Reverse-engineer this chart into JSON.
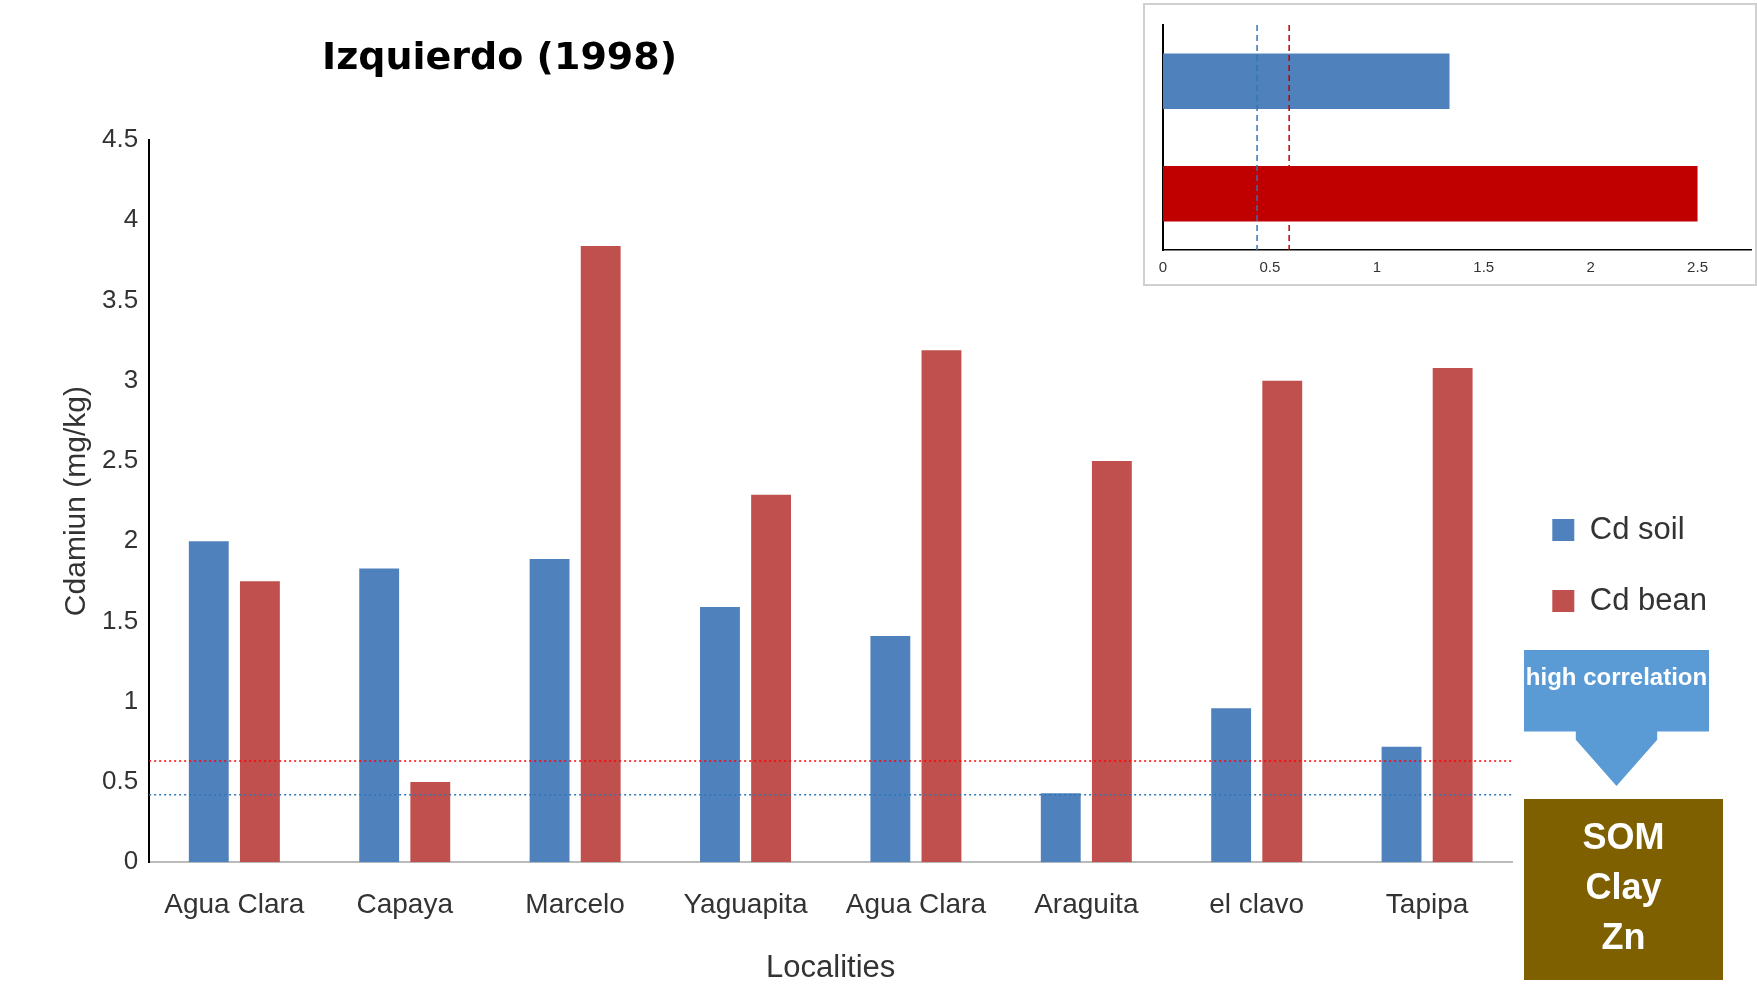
{
  "chart_data": [
    {
      "type": "bar",
      "title": "Izquierdo (1998)",
      "xlabel": "Localities",
      "ylabel": "Cdamiun (mg/kg)",
      "categories": [
        "Agua Clara",
        "Capaya",
        "Marcelo",
        "Yaguapita",
        "Agua Clara",
        "Araguita",
        "el clavo",
        "Tapipa"
      ],
      "series": [
        {
          "name": "Cd soil",
          "color": "#4f81bd",
          "values": [
            2.0,
            1.83,
            1.89,
            1.59,
            1.41,
            0.43,
            0.96,
            0.72
          ]
        },
        {
          "name": "Cd bean",
          "color": "#c0504d",
          "values": [
            1.75,
            0.5,
            3.84,
            2.29,
            3.19,
            2.5,
            3.0,
            3.08
          ]
        }
      ],
      "ylim": [
        0,
        4.5
      ],
      "yticks": [
        0,
        0.5,
        1,
        1.5,
        2,
        2.5,
        3,
        3.5,
        4,
        4.5
      ],
      "grid": false,
      "legend": "right",
      "ref_lines": [
        {
          "axis": "y",
          "value": 0.63,
          "color": "#ff0000",
          "line_style": "dotted"
        },
        {
          "axis": "y",
          "value": 0.42,
          "color": "#2e75b6",
          "line_style": "dotted"
        }
      ],
      "annotations": [
        "high correlation",
        "SOM",
        "Clay",
        "Zn"
      ]
    },
    {
      "type": "bar",
      "orientation": "horizontal",
      "categories": [
        null,
        null
      ],
      "values": [
        1.34,
        2.5
      ],
      "colors": [
        "#4f81bd",
        "#c00000"
      ],
      "xlim": [
        0,
        2.75
      ],
      "xticks": [
        0,
        0.5,
        1,
        1.5,
        2,
        2.5
      ],
      "grid": false,
      "tick_labels": "x",
      "ref_lines": [
        {
          "axis": "x",
          "value": 0.44,
          "color": "#2e75b6",
          "line_style": "dashed"
        },
        {
          "axis": "x",
          "value": 0.59,
          "color": "#c00000",
          "line_style": "dashed"
        }
      ]
    }
  ]
}
